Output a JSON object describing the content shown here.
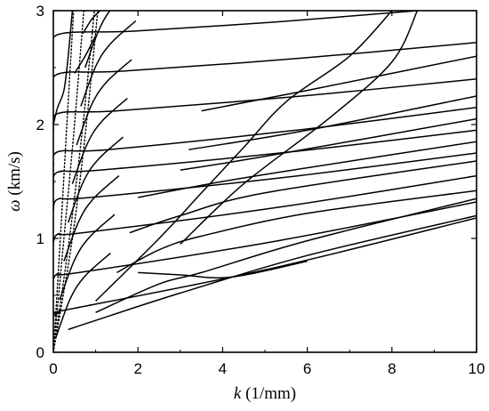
{
  "chart_data": {
    "type": "line",
    "xlabel_symbol": "k",
    "xlabel_unit": "(1/mm)",
    "ylabel_symbol": "ω",
    "ylabel_unit": "(km/s)",
    "xlim": [
      0,
      10
    ],
    "ylim": [
      0,
      3
    ],
    "x_ticks": [
      "0",
      "2",
      "4",
      "6",
      "8",
      "10"
    ],
    "y_ticks": [
      "0",
      "1",
      "2",
      "3"
    ],
    "grid": false,
    "legend": "none",
    "style": {
      "solid_color": "#000000",
      "dotted_color": "#000000"
    },
    "dotted_lines": [
      {
        "points": [
          [
            0,
            0
          ],
          [
            0.15,
            0.9
          ],
          [
            0.32,
            2.0
          ],
          [
            0.48,
            3.0
          ]
        ]
      },
      {
        "points": [
          [
            0,
            0
          ],
          [
            0.25,
            1.0
          ],
          [
            0.5,
            2.0
          ],
          [
            0.72,
            3.0
          ]
        ]
      },
      {
        "points": [
          [
            0,
            0
          ],
          [
            0.38,
            1.0
          ],
          [
            0.7,
            2.0
          ],
          [
            0.97,
            3.0
          ]
        ]
      },
      {
        "points": [
          [
            0,
            0
          ],
          [
            0.45,
            1.0
          ],
          [
            0.78,
            2.0
          ],
          [
            1.05,
            3.0
          ]
        ]
      }
    ],
    "plateaus": [
      {
        "plateau": 0.35,
        "start": 0.0,
        "end": 10.0,
        "end_value": 1.18
      },
      {
        "plateau": 0.7,
        "start": 0.6,
        "end": 10.0,
        "end_value": 1.32
      },
      {
        "plateau": 1.05,
        "start": 0.7,
        "end": 10.0,
        "end_value": 1.55
      },
      {
        "plateau": 1.36,
        "start": 0.9,
        "end": 10.0,
        "end_value": 1.75
      },
      {
        "plateau": 1.6,
        "start": 1.1,
        "end": 10.0,
        "end_value": 1.95
      },
      {
        "plateau": 1.78,
        "start": 1.3,
        "end": 10.0,
        "end_value": 2.15
      },
      {
        "plateau": 2.12,
        "start": 1.5,
        "end": 10.0,
        "end_value": 2.4
      },
      {
        "plateau": 2.47,
        "start": 1.7,
        "end": 10.0,
        "end_value": 2.72
      },
      {
        "plateau": 2.82,
        "start": 1.9,
        "end": 8.6,
        "end_value": 3.0
      }
    ],
    "mode_lines": [
      {
        "points": [
          [
            0.35,
            0.2
          ],
          [
            1.0,
            0.28
          ],
          [
            3.0,
            0.52
          ],
          [
            6.0,
            0.85
          ],
          [
            10.0,
            1.2
          ]
        ]
      },
      {
        "points": [
          [
            1.0,
            0.35
          ],
          [
            2.5,
            0.6
          ],
          [
            3.5,
            0.7
          ],
          [
            6.0,
            0.98
          ],
          [
            10.0,
            1.35
          ]
        ]
      },
      {
        "points": [
          [
            1.5,
            0.7
          ],
          [
            2.5,
            0.9
          ],
          [
            3.5,
            1.02
          ],
          [
            6.0,
            1.22
          ],
          [
            10.0,
            1.42
          ]
        ]
      },
      {
        "points": [
          [
            1.8,
            1.05
          ],
          [
            3.0,
            1.2
          ],
          [
            5.0,
            1.4
          ],
          [
            10.0,
            1.68
          ]
        ]
      },
      {
        "points": [
          [
            2.0,
            1.36
          ],
          [
            4.0,
            1.5
          ],
          [
            6.0,
            1.62
          ],
          [
            10.0,
            1.85
          ]
        ]
      },
      {
        "points": [
          [
            3.0,
            1.6
          ],
          [
            5.0,
            1.72
          ],
          [
            10.0,
            2.05
          ]
        ]
      },
      {
        "points": [
          [
            3.2,
            1.78
          ],
          [
            6.0,
            1.95
          ],
          [
            10.0,
            2.25
          ]
        ]
      },
      {
        "points": [
          [
            3.5,
            2.12
          ],
          [
            6.0,
            2.3
          ],
          [
            10.0,
            2.6
          ]
        ]
      },
      {
        "points": [
          [
            2.0,
            0.7
          ],
          [
            3.0,
            0.68
          ],
          [
            4.2,
            0.66
          ],
          [
            6.0,
            0.8
          ]
        ]
      },
      {
        "points": [
          [
            3.0,
            0.95
          ],
          [
            4.5,
            1.48
          ],
          [
            6.5,
            2.05
          ],
          [
            8.0,
            2.55
          ],
          [
            8.6,
            3.0
          ]
        ]
      },
      {
        "points": [
          [
            1.0,
            0.45
          ],
          [
            2.5,
            1.0
          ],
          [
            3.5,
            1.4
          ],
          [
            4.5,
            1.8
          ],
          [
            5.5,
            2.2
          ],
          [
            7.0,
            2.6
          ],
          [
            8.0,
            3.0
          ]
        ]
      }
    ],
    "extra_steep": [
      {
        "points": [
          [
            0.0,
            2.0
          ],
          [
            0.1,
            2.15
          ],
          [
            0.25,
            2.3
          ],
          [
            0.35,
            2.6
          ],
          [
            0.45,
            3.0
          ]
        ]
      },
      {
        "points": [
          [
            0.5,
            2.45
          ],
          [
            0.75,
            2.6
          ],
          [
            1.0,
            2.78
          ]
        ]
      },
      {
        "points": [
          [
            0.7,
            2.8
          ],
          [
            0.9,
            2.92
          ],
          [
            1.1,
            3.0
          ]
        ]
      }
    ]
  }
}
